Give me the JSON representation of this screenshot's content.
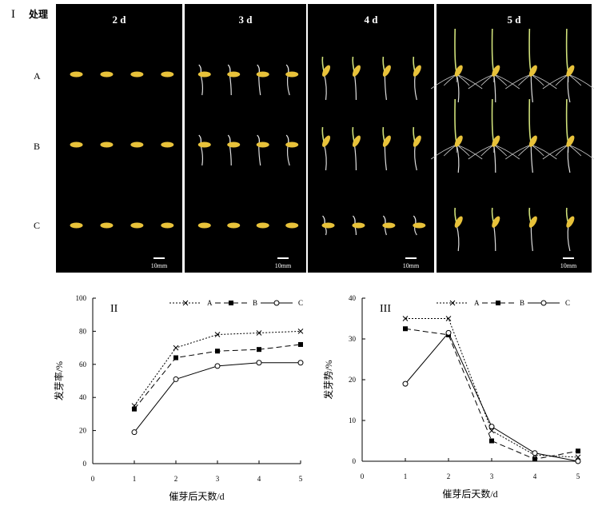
{
  "figure": {
    "panel_label": "I",
    "row_header": "处理",
    "days": [
      "2 d",
      "3 d",
      "4 d",
      "5 d"
    ],
    "rows": [
      "A",
      "B",
      "C"
    ],
    "scale_bar": "10mm"
  },
  "chart_data": [
    {
      "type": "line",
      "panel_label": "II",
      "xlabel": "催芽后天数/d",
      "ylabel": "发芽率/%",
      "x": [
        1,
        2,
        3,
        4,
        5
      ],
      "xticks": [
        "0",
        "1",
        "2",
        "3",
        "4",
        "5"
      ],
      "yticks": [
        "0",
        "20",
        "40",
        "60",
        "80",
        "100"
      ],
      "xlim": [
        0,
        5
      ],
      "ylim": [
        0,
        100
      ],
      "grid": false,
      "legend": "top-right",
      "series": [
        {
          "name": "A",
          "marker": "x",
          "line": "dotted",
          "values": [
            35,
            70,
            78,
            79,
            80
          ]
        },
        {
          "name": "B",
          "marker": "filled-square",
          "line": "dashed",
          "values": [
            33,
            64,
            68,
            69,
            72
          ]
        },
        {
          "name": "C",
          "marker": "open-circle",
          "line": "solid",
          "values": [
            19,
            51,
            59,
            61,
            61
          ]
        }
      ]
    },
    {
      "type": "line",
      "panel_label": "III",
      "xlabel": "催芽后天数/d",
      "ylabel": "发芽势/%",
      "x": [
        1,
        2,
        3,
        4,
        5
      ],
      "xticks": [
        "0",
        "1",
        "2",
        "3",
        "4",
        "5"
      ],
      "yticks": [
        "0",
        "10",
        "20",
        "30",
        "40"
      ],
      "xlim": [
        0,
        5
      ],
      "ylim": [
        0,
        40
      ],
      "grid": false,
      "legend": "top-right",
      "series": [
        {
          "name": "A",
          "marker": "x",
          "line": "dotted",
          "values": [
            35,
            35,
            7.5,
            1.5,
            1
          ]
        },
        {
          "name": "B",
          "marker": "filled-square",
          "line": "dashed",
          "values": [
            32.5,
            31,
            5,
            0.5,
            2.5
          ]
        },
        {
          "name": "C",
          "marker": "open-circle",
          "line": "solid",
          "values": [
            19,
            31.5,
            8.5,
            2,
            0
          ]
        }
      ]
    }
  ]
}
